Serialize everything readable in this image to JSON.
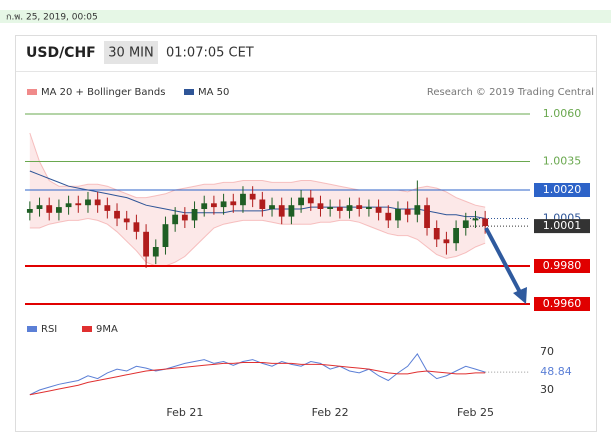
{
  "header": {
    "date": "ก.พ. 25, 2019, 00:05",
    "symbol": "USD/CHF",
    "timeframe": "30 MIN",
    "time": "01:07:05 CET",
    "credit": "Research © 2019 Trading Central"
  },
  "chart_data": [
    {
      "type": "candlestick",
      "categories": [
        null,
        null,
        null,
        null,
        null,
        null,
        null,
        null,
        null,
        null,
        null,
        null,
        null,
        null,
        null,
        null,
        "Feb 21",
        null,
        null,
        null,
        null,
        null,
        null,
        null,
        null,
        null,
        null,
        null,
        null,
        null,
        null,
        "Feb 22",
        null,
        null,
        null,
        null,
        null,
        null,
        null,
        null,
        null,
        null,
        null,
        null,
        null,
        null,
        "Feb 25",
        null
      ],
      "open": [
        1.0008,
        1.001,
        1.0012,
        1.0008,
        1.0011,
        1.0013,
        1.0012,
        1.0015,
        1.0012,
        1.0009,
        1.0005,
        1.0003,
        0.9998,
        0.9985,
        0.999,
        1.0002,
        1.0007,
        1.0004,
        1.001,
        1.0013,
        1.0011,
        1.0014,
        1.0012,
        1.0018,
        1.0015,
        1.001,
        1.0012,
        1.0006,
        1.0012,
        1.0016,
        1.0013,
        1.001,
        1.0011,
        1.0009,
        1.0012,
        1.001,
        1.0011,
        1.0008,
        1.0004,
        1.001,
        1.0007,
        1.0012,
        1.0,
        0.9994,
        0.9992,
        1.0,
        1.0004,
        1.0005
      ],
      "high": [
        1.0014,
        1.0016,
        1.0016,
        1.0015,
        1.0017,
        1.0017,
        1.0019,
        1.0019,
        1.0016,
        1.0013,
        1.0009,
        1.0007,
        1.0002,
        0.9994,
        1.0006,
        1.0011,
        1.0011,
        1.0014,
        1.0017,
        1.0017,
        1.0018,
        1.0018,
        1.0022,
        1.0022,
        1.0019,
        1.0016,
        1.0016,
        1.0016,
        1.002,
        1.002,
        1.0017,
        1.0015,
        1.0015,
        1.0016,
        1.0016,
        1.0015,
        1.0015,
        1.0012,
        1.0014,
        1.0014,
        1.0025,
        1.0016,
        1.0004,
        0.9998,
        1.0004,
        1.0008,
        1.0009,
        1.0009
      ],
      "low": [
        1.0004,
        1.0006,
        1.0004,
        1.0004,
        1.0007,
        1.0008,
        1.0008,
        1.0008,
        1.0005,
        1.0001,
        0.9999,
        0.9994,
        0.9979,
        0.9981,
        0.9986,
        0.9998,
        1.0,
        1.0,
        1.0006,
        1.0007,
        1.0007,
        1.0008,
        1.0008,
        1.0011,
        1.0006,
        1.0006,
        1.0002,
        1.0002,
        1.0008,
        1.0009,
        1.0006,
        1.0006,
        1.0005,
        1.0005,
        1.0006,
        1.0006,
        1.0004,
        1.0,
        1.0,
        1.0003,
        1.0003,
        0.9996,
        0.999,
        0.9986,
        0.9988,
        0.9996,
        1.0,
        0.9997
      ],
      "close": [
        1.001,
        1.0012,
        1.0008,
        1.0011,
        1.0013,
        1.0012,
        1.0015,
        1.0012,
        1.0009,
        1.0005,
        1.0003,
        0.9998,
        0.9985,
        0.999,
        1.0002,
        1.0007,
        1.0004,
        1.001,
        1.0013,
        1.0011,
        1.0014,
        1.0012,
        1.0018,
        1.0015,
        1.001,
        1.0012,
        1.0006,
        1.0012,
        1.0016,
        1.0013,
        1.001,
        1.0011,
        1.0009,
        1.0012,
        1.001,
        1.0011,
        1.0008,
        1.0004,
        1.001,
        1.0007,
        1.0012,
        1.0,
        0.9994,
        0.9992,
        1.0,
        1.0004,
        1.0005,
        1.0001
      ],
      "up_color": "#1e5e24",
      "down_color": "#b01c1c",
      "bands": {
        "name": "MA 20 + Bollinger Bands",
        "color": "#f08a8a",
        "upper": [
          1.005,
          1.0035,
          1.0025,
          1.0022,
          1.0022,
          1.0022,
          1.0023,
          1.0023,
          1.0022,
          1.002,
          1.0018,
          1.0016,
          1.0016,
          1.0017,
          1.0018,
          1.002,
          1.0021,
          1.0022,
          1.0023,
          1.0023,
          1.0024,
          1.0024,
          1.0025,
          1.0025,
          1.0025,
          1.0024,
          1.0024,
          1.0024,
          1.0025,
          1.0025,
          1.0024,
          1.0023,
          1.0022,
          1.0021,
          1.002,
          1.002,
          1.002,
          1.002,
          1.002,
          1.0019,
          1.0021,
          1.0022,
          1.0021,
          1.0019,
          1.0016,
          1.0014,
          1.0012,
          1.0011
        ],
        "lower": [
          1.0,
          1.0,
          1.0002,
          1.0003,
          1.0004,
          1.0004,
          1.0005,
          1.0004,
          1.0002,
          0.9998,
          0.9993,
          0.9988,
          0.9982,
          0.998,
          0.998,
          0.9982,
          0.9985,
          0.999,
          0.9995,
          1.0,
          1.0002,
          1.0003,
          1.0004,
          1.0004,
          1.0004,
          1.0003,
          1.0002,
          1.0002,
          1.0002,
          1.0002,
          1.0003,
          1.0003,
          1.0004,
          1.0004,
          1.0003,
          1.0001,
          0.9999,
          0.9997,
          0.9996,
          0.9996,
          0.9994,
          0.999,
          0.9986,
          0.9984,
          0.9985,
          0.9987,
          0.999,
          0.9992
        ]
      },
      "ma": {
        "name": "MA 50",
        "color": "#2f5597",
        "values": [
          1.003,
          1.0028,
          1.0026,
          1.0024,
          1.0022,
          1.0021,
          1.002,
          1.0019,
          1.0018,
          1.0017,
          1.0016,
          1.0014,
          1.0012,
          1.0011,
          1.001,
          1.0009,
          1.0008,
          1.0008,
          1.0008,
          1.0008,
          1.0008,
          1.0009,
          1.0009,
          1.0009,
          1.0009,
          1.001,
          1.001,
          1.001,
          1.001,
          1.0011,
          1.0011,
          1.0011,
          1.0011,
          1.0011,
          1.0011,
          1.0011,
          1.0011,
          1.0011,
          1.001,
          1.001,
          1.001,
          1.0009,
          1.0008,
          1.0007,
          1.0007,
          1.0006,
          1.0006,
          1.0005
        ]
      },
      "ylim": [
        0.9955,
        1.0065
      ],
      "levels": [
        {
          "value": 1.006,
          "label": "1.0060",
          "color": "#6aa84f",
          "line": "thin",
          "tag": "text"
        },
        {
          "value": 1.0035,
          "label": "1.0035",
          "color": "#6aa84f",
          "line": "thin",
          "tag": "text"
        },
        {
          "value": 1.002,
          "label": "1.0020",
          "color": "#2d63c8",
          "line": "thin",
          "tag": "box"
        },
        {
          "value": 1.0005,
          "label": "1.0005",
          "color": "#2f5597",
          "line": "dotted",
          "tag": "text"
        },
        {
          "value": 1.0001,
          "label": "1.0001",
          "color": "#333333",
          "line": "dotted",
          "tag": "box"
        },
        {
          "value": 0.998,
          "label": "0.9980",
          "color": "#e00000",
          "line": "thick",
          "tag": "box"
        },
        {
          "value": 0.996,
          "label": "0.9960",
          "color": "#e00000",
          "line": "thick",
          "tag": "box"
        }
      ]
    },
    {
      "type": "line",
      "series": [
        {
          "name": "RSI",
          "color": "#5b7fd6",
          "values": [
            25,
            30,
            33,
            36,
            38,
            40,
            45,
            42,
            48,
            52,
            50,
            55,
            53,
            50,
            52,
            55,
            58,
            60,
            62,
            58,
            60,
            56,
            60,
            62,
            58,
            55,
            60,
            57,
            55,
            60,
            58,
            52,
            55,
            50,
            48,
            52,
            45,
            40,
            48,
            55,
            68,
            50,
            42,
            45,
            50,
            55,
            52,
            48.84
          ]
        },
        {
          "name": "9MA",
          "color": "#e03030",
          "values": [
            25,
            27,
            29,
            31,
            33,
            35,
            38,
            40,
            42,
            44,
            46,
            48,
            50,
            51,
            52,
            53,
            54,
            55,
            56,
            57,
            58,
            58,
            59,
            59,
            59,
            58,
            58,
            58,
            57,
            57,
            57,
            56,
            55,
            54,
            53,
            52,
            50,
            48,
            47,
            47,
            49,
            50,
            49,
            48,
            47,
            47,
            48,
            48
          ]
        }
      ],
      "ylim": [
        20,
        80
      ],
      "yticks": [
        70,
        30
      ]
    }
  ]
}
